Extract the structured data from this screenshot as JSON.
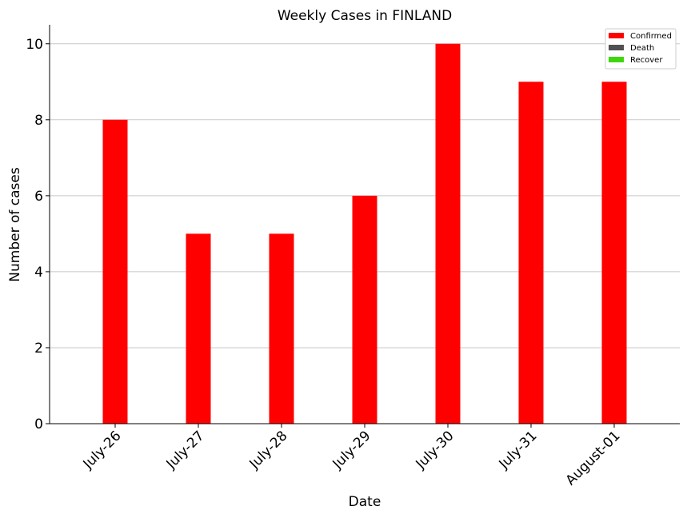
{
  "chart_data": {
    "type": "bar",
    "title": "Weekly Cases in FINLAND",
    "xlabel": "Date",
    "ylabel": "Number of cases",
    "categories": [
      "July-26",
      "July-27",
      "July-28",
      "July-29",
      "July-30",
      "July-31",
      "August-01"
    ],
    "series": [
      {
        "name": "Confirmed",
        "color": "#ff0000",
        "values": [
          8,
          5,
          5,
          6,
          10,
          9,
          9
        ]
      },
      {
        "name": "Death",
        "color": "#505050",
        "values": [
          0,
          0,
          0,
          0,
          0,
          0,
          0
        ]
      },
      {
        "name": "Recover",
        "color": "#3fd60f",
        "values": [
          0,
          0,
          0,
          0,
          0,
          0,
          0
        ]
      }
    ],
    "ylim": [
      0,
      10.5
    ],
    "yticks": [
      0,
      2,
      4,
      6,
      8,
      10
    ],
    "grid": "y",
    "legend": "top-right"
  }
}
